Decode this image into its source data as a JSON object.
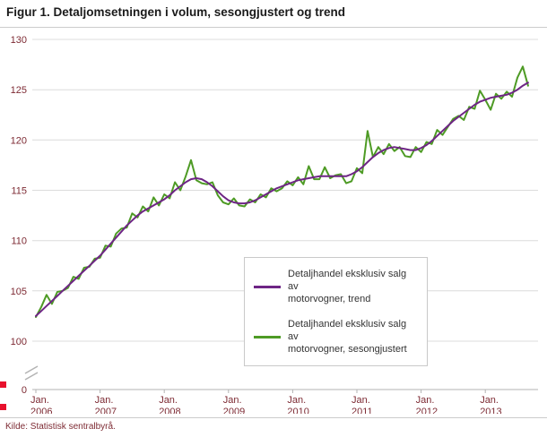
{
  "title": "Figur 1. Detaljomsetningen i volum, sesongjustert og trend",
  "source": "Kilde: Statistisk sentralbyrå.",
  "colors": {
    "grid": "#dcdcdc",
    "axis_line": "#b3b3b3",
    "axis_text": "#7d2a33",
    "brand_square": "#e8112d",
    "title_text": "#1a1a1a",
    "legend_text": "#333333",
    "divider": "#cccccc"
  },
  "legend": {
    "entries": [
      {
        "line1": "Detaljhandel eksklusiv salg av",
        "line2": "motorvogner, trend",
        "series": "trend"
      },
      {
        "line1": "Detaljhandel eksklusiv salg av",
        "line2": "motorvogner, sesongjustert",
        "series": "seasonal"
      }
    ]
  },
  "chart_data": {
    "type": "line",
    "title": "Figur 1. Detaljomsetningen i volum, sesongjustert og trend",
    "xlabel": "",
    "ylabel": "",
    "ylim": [
      100,
      130
    ],
    "y_axis_break_to_zero": true,
    "y_ticks": [
      0,
      100,
      105,
      110,
      115,
      120,
      125,
      130
    ],
    "grid": "horizontal",
    "legend_position": "inside-right",
    "x_unit": "month",
    "x_range_start": "Jan. 2006",
    "x_range_end": "Sep. 2013",
    "x_labels": [
      {
        "month": "Jan.",
        "year": "2006"
      },
      {
        "month": "Jan.",
        "year": "2007"
      },
      {
        "month": "Jan.",
        "year": "2008"
      },
      {
        "month": "Jan.",
        "year": "2009"
      },
      {
        "month": "Jan.",
        "year": "2010"
      },
      {
        "month": "Jan.",
        "year": "2011"
      },
      {
        "month": "Jan.",
        "year": "2012"
      },
      {
        "month": "Jan.",
        "year": "2013"
      }
    ],
    "series": [
      {
        "name": "Detaljhandel eksklusiv salg av motorvogner, trend",
        "key": "trend",
        "color": "#6e2585",
        "values": [
          102.5,
          103.0,
          103.5,
          104.0,
          104.5,
          105.0,
          105.5,
          106.0,
          106.5,
          107.0,
          107.5,
          108.0,
          108.5,
          109.1,
          109.7,
          110.3,
          110.9,
          111.5,
          112.0,
          112.5,
          112.9,
          113.2,
          113.5,
          113.8,
          114.1,
          114.5,
          115.0,
          115.4,
          115.8,
          116.1,
          116.2,
          116.1,
          115.8,
          115.4,
          114.9,
          114.4,
          114.0,
          113.8,
          113.7,
          113.7,
          113.8,
          114.0,
          114.3,
          114.6,
          114.9,
          115.2,
          115.4,
          115.6,
          115.8,
          116.0,
          116.1,
          116.2,
          116.3,
          116.4,
          116.4,
          116.4,
          116.4,
          116.4,
          116.4,
          116.6,
          116.9,
          117.3,
          117.8,
          118.3,
          118.7,
          119.0,
          119.2,
          119.3,
          119.2,
          119.1,
          119.0,
          119.0,
          119.2,
          119.5,
          119.9,
          120.4,
          120.9,
          121.4,
          121.9,
          122.3,
          122.7,
          123.1,
          123.5,
          123.8,
          124.0,
          124.2,
          124.3,
          124.4,
          124.5,
          124.7,
          125.0,
          125.4,
          125.7
        ]
      },
      {
        "name": "Detaljhandel eksklusiv salg av motorvogner, sesongjustert",
        "key": "seasonal",
        "color": "#4e9b25",
        "values": [
          102.4,
          103.4,
          104.6,
          103.7,
          104.9,
          105.0,
          105.3,
          106.4,
          106.2,
          107.3,
          107.4,
          108.2,
          108.3,
          109.5,
          109.4,
          110.7,
          111.2,
          111.3,
          112.7,
          112.3,
          113.4,
          112.9,
          114.3,
          113.5,
          114.6,
          114.2,
          115.8,
          115.0,
          116.4,
          118.0,
          116.0,
          115.7,
          115.6,
          115.8,
          114.5,
          113.8,
          113.6,
          114.2,
          113.5,
          113.4,
          114.1,
          113.8,
          114.6,
          114.3,
          115.2,
          114.9,
          115.2,
          115.9,
          115.5,
          116.3,
          115.6,
          117.4,
          116.1,
          116.1,
          117.3,
          116.2,
          116.5,
          116.6,
          115.7,
          115.9,
          117.2,
          116.7,
          120.9,
          118.3,
          119.3,
          118.6,
          119.6,
          118.9,
          119.3,
          118.4,
          118.3,
          119.3,
          118.8,
          119.8,
          119.6,
          121.0,
          120.5,
          121.3,
          122.1,
          122.4,
          122.0,
          123.3,
          123.1,
          124.9,
          124.0,
          123.0,
          124.6,
          124.1,
          124.8,
          124.3,
          126.2,
          127.3,
          125.4
        ]
      }
    ]
  }
}
